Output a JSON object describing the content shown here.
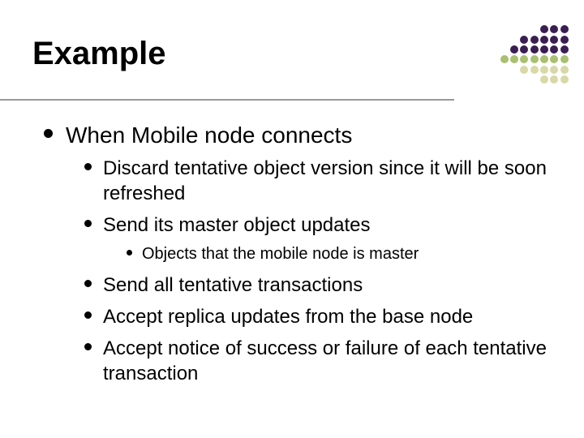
{
  "title": "Example",
  "content": {
    "l1": "When Mobile node connects",
    "l2a": "Discard tentative object version since it will be soon refreshed",
    "l2b": "Send its master object updates",
    "l3a": "Objects that the mobile node is master",
    "l2c": "Send all tentative transactions",
    "l2d": "Accept replica updates from the base node",
    "l2e": "Accept notice of success or failure of each tentative transaction"
  },
  "decor": {
    "rows": [
      [
        null,
        null,
        null,
        null,
        "#3a1e52",
        "#3a1e52",
        "#3a1e52"
      ],
      [
        null,
        null,
        "#3a1e52",
        "#3a1e52",
        "#3a1e52",
        "#3a1e52",
        "#3a1e52"
      ],
      [
        null,
        "#3a1e52",
        "#3a1e52",
        "#3a1e52",
        "#3a1e52",
        "#3a1e52",
        "#3a1e52"
      ],
      [
        "#a8c070",
        "#a8c070",
        "#a8c070",
        "#a8c070",
        "#a8c070",
        "#a8c070",
        "#a8c070"
      ],
      [
        null,
        null,
        "#d8d8a8",
        "#d8d8a8",
        "#d8d8a8",
        "#d8d8a8",
        "#d8d8a8"
      ],
      [
        null,
        null,
        null,
        null,
        "#d8d8a8",
        "#d8d8a8",
        "#d8d8a8"
      ]
    ]
  },
  "colors": {
    "rule": "#999999",
    "bullet": "#000000",
    "title": "#000000",
    "text": "#000000",
    "background": "#ffffff"
  },
  "fonts": {
    "title_size": 40,
    "l1_size": 28,
    "l2_size": 24,
    "l3_size": 20,
    "family": "Arial"
  }
}
